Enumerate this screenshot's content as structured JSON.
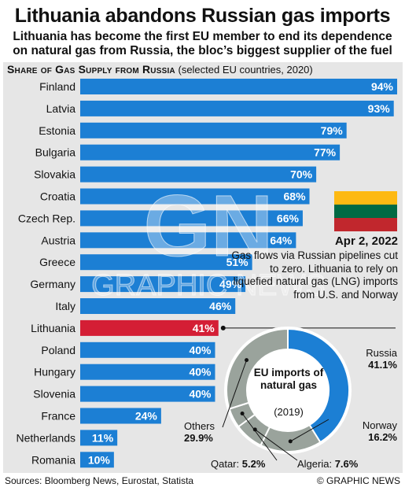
{
  "header": {
    "title": "Lithuania abandons Russian gas imports",
    "subtitle": "Lithuania has become the first EU member to end its dependence on natural gas from Russia, the bloc’s biggest supplier of the fuel"
  },
  "section": {
    "title": "Share of Gas Supply from Russia",
    "note": "(selected EU countries, 2020)"
  },
  "callout": {
    "date": "Apr 2, 2022",
    "text": "Gas flows via Russian pipelines cut to zero. Lithuania to rely on liquefied natural gas (LNG) imports from U.S. and Norway"
  },
  "flag_colors": [
    "#fdb913",
    "#006a44",
    "#c1272d"
  ],
  "colors": {
    "bar": "#1c7fd4",
    "highlight": "#d41e35",
    "panel": "#e6e6e6",
    "pie_other": "#9aa39c"
  },
  "footer": {
    "sources": "Sources: Bloomberg News, Eurostat, Statista",
    "credit": "© GRAPHIC NEWS"
  },
  "watermark": {
    "logo": "GN",
    "text": "GRAPHIC NEWS"
  },
  "chart_data": [
    {
      "type": "bar",
      "orientation": "horizontal",
      "categories": [
        "Finland",
        "Latvia",
        "Estonia",
        "Bulgaria",
        "Slovakia",
        "Croatia",
        "Czech Rep.",
        "Austria",
        "Greece",
        "Germany",
        "Italy",
        "Lithuania",
        "Poland",
        "Hungary",
        "Slovenia",
        "France",
        "Netherlands",
        "Romania"
      ],
      "values": [
        94,
        93,
        79,
        77,
        70,
        68,
        66,
        64,
        51,
        49,
        46,
        41,
        40,
        40,
        40,
        24,
        11,
        10
      ],
      "value_labels": [
        "94%",
        "93%",
        "79%",
        "77%",
        "70%",
        "68%",
        "66%",
        "64%",
        "51%",
        "49%",
        "46%",
        "41%",
        "40%",
        "40%",
        "40%",
        "24%",
        "11%",
        "10%"
      ],
      "highlight": "Lithuania",
      "xlim": [
        0,
        94
      ]
    },
    {
      "type": "pie",
      "style": "donut",
      "title": "EU imports of natural gas",
      "subtitle": "(2019)",
      "slices": [
        {
          "name": "Russia",
          "value": 41.1,
          "label": "41.1%",
          "color": "#1c7fd4"
        },
        {
          "name": "Norway",
          "value": 16.2,
          "label": "16.2%",
          "color": "#9aa39c"
        },
        {
          "name": "Algeria",
          "value": 7.6,
          "label": "7.6%",
          "color": "#9aa39c"
        },
        {
          "name": "Qatar",
          "value": 5.2,
          "label": "5.2%",
          "color": "#9aa39c"
        },
        {
          "name": "Others",
          "value": 29.9,
          "label": "29.9%",
          "color": "#9aa39c"
        }
      ]
    }
  ]
}
